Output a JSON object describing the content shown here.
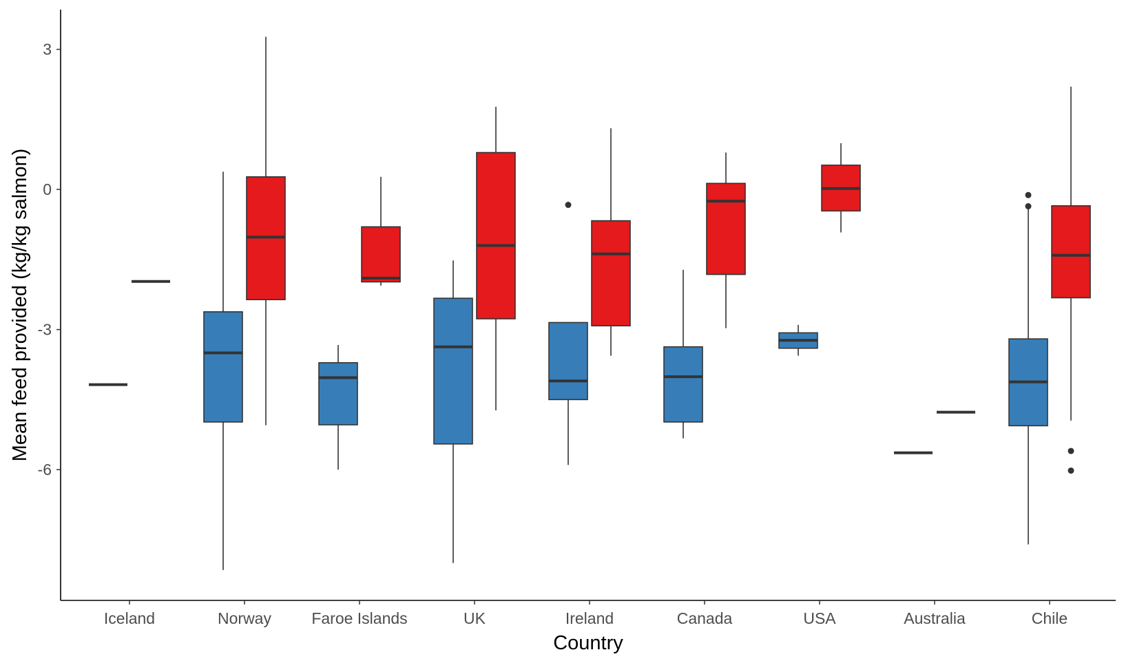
{
  "chart_data": {
    "type": "box",
    "xlabel": "Country",
    "ylabel": "Mean feed provided (kg/kg salmon)",
    "categories": [
      "Iceland",
      "Norway",
      "Faroe Islands",
      "UK",
      "Ireland",
      "Canada",
      "USA",
      "Australia",
      "Chile"
    ],
    "ylim": [
      -8.8,
      3.85
    ],
    "yticks": [
      3,
      0,
      -3,
      -6
    ],
    "ytick_labels": [
      "3",
      "0",
      "-3",
      "-6"
    ],
    "grid": false,
    "legend": "none",
    "colors": {
      "group1": "#377EB8",
      "group2": "#E41A1C",
      "outline": "#333333",
      "axis": "#000000"
    },
    "groups": [
      {
        "color": "#377EB8",
        "boxes": [
          {
            "category": "Iceland",
            "q1": -4.18,
            "median": -4.18,
            "q3": -4.18,
            "low": -4.18,
            "high": -4.18,
            "outliers": []
          },
          {
            "category": "Norway",
            "q1": -4.98,
            "median": -3.5,
            "q3": -2.62,
            "low": -8.15,
            "high": 0.38,
            "outliers": []
          },
          {
            "category": "Faroe Islands",
            "q1": -5.04,
            "median": -4.03,
            "q3": -3.71,
            "low": -6.0,
            "high": -3.33,
            "outliers": []
          },
          {
            "category": "UK",
            "q1": -5.45,
            "median": -3.37,
            "q3": -2.33,
            "low": -8.0,
            "high": -1.52,
            "outliers": []
          },
          {
            "category": "Ireland",
            "q1": -4.5,
            "median": -4.1,
            "q3": -2.85,
            "low": -5.9,
            "high": -2.85,
            "outliers": [
              -0.33
            ]
          },
          {
            "category": "Canada",
            "q1": -4.98,
            "median": -4.01,
            "q3": -3.37,
            "low": -5.33,
            "high": -1.72,
            "outliers": []
          },
          {
            "category": "USA",
            "q1": -3.4,
            "median": -3.23,
            "q3": -3.07,
            "low": -3.56,
            "high": -2.9,
            "outliers": []
          },
          {
            "category": "Australia",
            "q1": -5.64,
            "median": -5.64,
            "q3": -5.64,
            "low": -5.64,
            "high": -5.64,
            "outliers": []
          },
          {
            "category": "Chile",
            "q1": -5.06,
            "median": -4.12,
            "q3": -3.2,
            "low": -7.6,
            "high": -0.33,
            "outliers": [
              -0.12,
              -0.36
            ]
          }
        ]
      },
      {
        "color": "#E41A1C",
        "boxes": [
          {
            "category": "Iceland",
            "q1": -1.97,
            "median": -1.97,
            "q3": -1.97,
            "low": -1.97,
            "high": -1.97,
            "outliers": []
          },
          {
            "category": "Norway",
            "q1": -2.36,
            "median": -1.02,
            "q3": 0.27,
            "low": -5.05,
            "high": 3.27,
            "outliers": []
          },
          {
            "category": "Faroe Islands",
            "q1": -1.98,
            "median": -1.9,
            "q3": -0.8,
            "low": -2.06,
            "high": 0.27,
            "outliers": []
          },
          {
            "category": "UK",
            "q1": -2.77,
            "median": -1.2,
            "q3": 0.79,
            "low": -4.73,
            "high": 1.77,
            "outliers": []
          },
          {
            "category": "Ireland",
            "q1": -2.92,
            "median": -1.38,
            "q3": -0.67,
            "low": -3.56,
            "high": 1.31,
            "outliers": []
          },
          {
            "category": "Canada",
            "q1": -1.82,
            "median": -0.25,
            "q3": 0.13,
            "low": -2.97,
            "high": 0.79,
            "outliers": []
          },
          {
            "category": "USA",
            "q1": -0.46,
            "median": 0.02,
            "q3": 0.52,
            "low": -0.92,
            "high": 0.99,
            "outliers": []
          },
          {
            "category": "Australia",
            "q1": -4.77,
            "median": -4.77,
            "q3": -4.77,
            "low": -4.77,
            "high": -4.77,
            "outliers": []
          },
          {
            "category": "Chile",
            "q1": -2.32,
            "median": -1.41,
            "q3": -0.35,
            "low": -4.95,
            "high": 2.2,
            "outliers": [
              -5.6,
              -6.02
            ]
          }
        ]
      }
    ]
  }
}
